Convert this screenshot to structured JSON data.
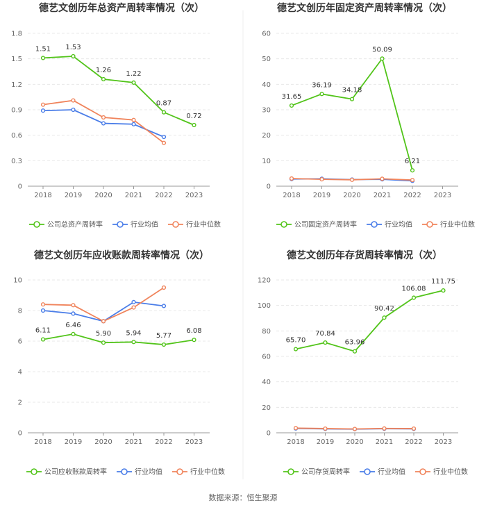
{
  "colors": {
    "company": "#52c41a",
    "industry_avg": "#4a7de8",
    "industry_median": "#f0845c",
    "axis": "#999999",
    "grid": "#e8e8e8",
    "divider": "#eeeeee"
  },
  "legend_labels": [
    "公司总资产周转率",
    "行业均值",
    "行业中位数"
  ],
  "source": "数据来源：恒生聚源",
  "chart_data": [
    {
      "type": "line",
      "title": "德艺文创历年总资产周转率情况（次）",
      "categories": [
        "2018",
        "2019",
        "2020",
        "2021",
        "2022",
        "2023"
      ],
      "ylim": [
        0,
        1.8
      ],
      "yticks": [
        "0",
        "0.3",
        "0.6",
        "0.9",
        "1.2",
        "1.5",
        "1.8"
      ],
      "series": [
        {
          "name": "公司总资产周转率",
          "role": "company",
          "values": [
            1.51,
            1.53,
            1.26,
            1.22,
            0.87,
            0.72
          ],
          "labels": [
            "1.51",
            "1.53",
            "1.26",
            "1.22",
            "0.87",
            "0.72"
          ]
        },
        {
          "name": "行业均值",
          "role": "industry_avg",
          "values": [
            0.89,
            0.9,
            0.74,
            0.73,
            0.58,
            null
          ]
        },
        {
          "name": "行业中位数",
          "role": "industry_median",
          "values": [
            0.96,
            1.01,
            0.81,
            0.78,
            0.51,
            null
          ]
        }
      ]
    },
    {
      "type": "line",
      "title": "德艺文创历年固定资产周转率情况（次）",
      "categories": [
        "2018",
        "2019",
        "2020",
        "2021",
        "2022",
        "2023"
      ],
      "ylim": [
        0,
        60
      ],
      "yticks": [
        "0",
        "10",
        "20",
        "30",
        "40",
        "50",
        "60"
      ],
      "series": [
        {
          "name": "公司固定资产周转率",
          "role": "company",
          "values": [
            31.65,
            36.19,
            34.18,
            50.09,
            6.21,
            null
          ],
          "labels": [
            "31.65",
            "36.19",
            "34.18",
            "50.09",
            "6.21",
            ""
          ]
        },
        {
          "name": "行业均值",
          "role": "industry_avg",
          "values": [
            2.8,
            2.9,
            2.6,
            2.7,
            2.1,
            null
          ]
        },
        {
          "name": "行业中位数",
          "role": "industry_median",
          "values": [
            3.0,
            2.7,
            2.5,
            2.9,
            2.4,
            null
          ]
        }
      ]
    },
    {
      "type": "line",
      "title": "德艺文创历年应收账款周转率情况（次）",
      "categories": [
        "2018",
        "2019",
        "2020",
        "2021",
        "2022",
        "2023"
      ],
      "ylim": [
        0,
        10
      ],
      "yticks": [
        "0",
        "2",
        "4",
        "6",
        "8",
        "10"
      ],
      "series": [
        {
          "name": "公司应收账款周转率",
          "role": "company",
          "values": [
            6.11,
            6.46,
            5.9,
            5.94,
            5.77,
            6.08
          ],
          "labels": [
            "6.11",
            "6.46",
            "5.90",
            "5.94",
            "5.77",
            "6.08"
          ]
        },
        {
          "name": "行业均值",
          "role": "industry_avg",
          "values": [
            8.0,
            7.8,
            7.3,
            8.55,
            8.3,
            null
          ]
        },
        {
          "name": "行业中位数",
          "role": "industry_median",
          "values": [
            8.4,
            8.35,
            7.3,
            8.2,
            9.5,
            null
          ]
        }
      ]
    },
    {
      "type": "line",
      "title": "德艺文创历年存货周转率情况（次）",
      "categories": [
        "2018",
        "2019",
        "2020",
        "2021",
        "2022",
        "2023"
      ],
      "ylim": [
        0,
        120
      ],
      "yticks": [
        "0",
        "20",
        "40",
        "60",
        "80",
        "100",
        "120"
      ],
      "series": [
        {
          "name": "公司存货周转率",
          "role": "company",
          "values": [
            65.7,
            70.84,
            63.96,
            90.42,
            106.08,
            111.75
          ],
          "labels": [
            "65.70",
            "70.84",
            "63.96",
            "90.42",
            "106.08",
            "111.75"
          ]
        },
        {
          "name": "行业均值",
          "role": "industry_avg",
          "values": [
            3.4,
            3.1,
            2.9,
            3.2,
            3.1,
            null
          ]
        },
        {
          "name": "行业中位数",
          "role": "industry_median",
          "values": [
            3.7,
            3.3,
            3.0,
            3.4,
            3.3,
            null
          ]
        }
      ]
    }
  ]
}
